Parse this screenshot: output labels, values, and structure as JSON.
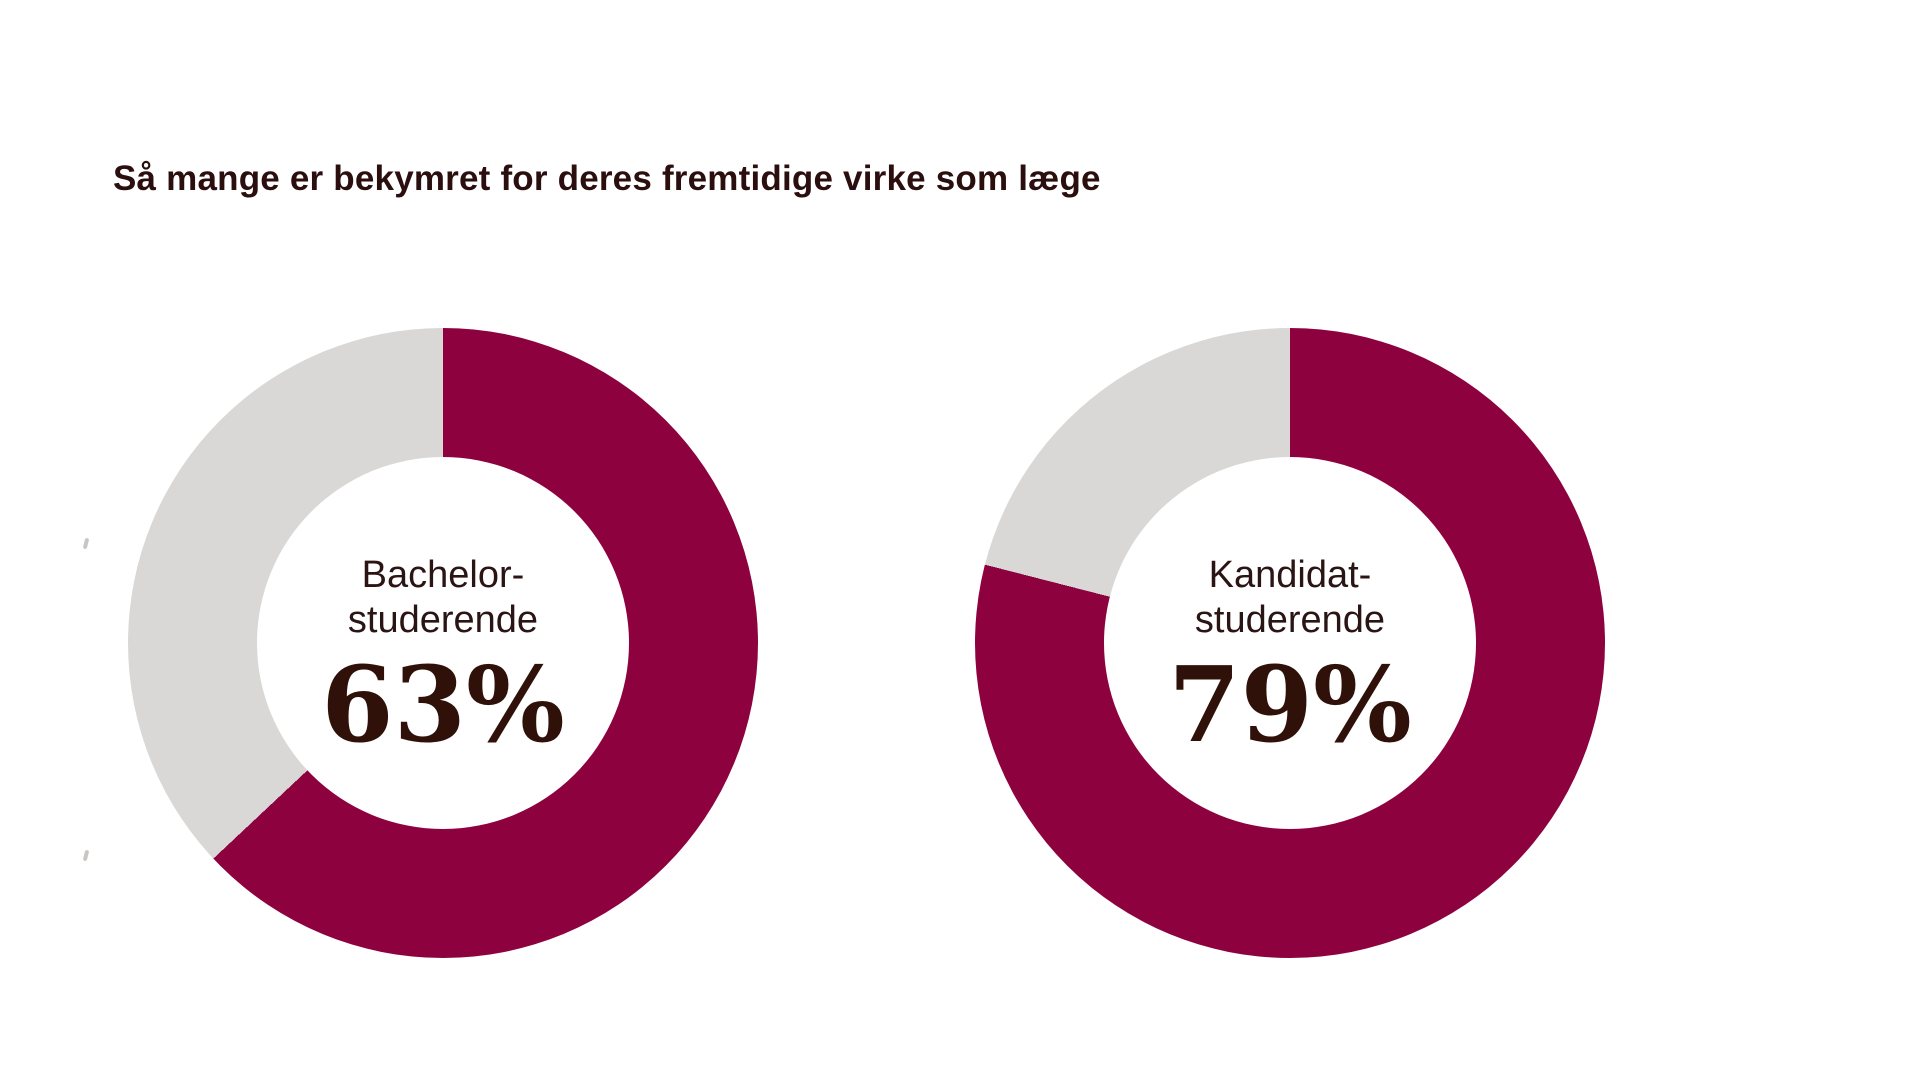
{
  "title": "Så mange er bekymret for deres fremtidige virke som læge",
  "colors": {
    "background": "#ffffff",
    "accent_filled": "#8e013f",
    "remainder_track": "#d9d8d6",
    "title_text": "#2b0e0e",
    "label_text": "#2b1414",
    "value_text": "#301109"
  },
  "chart_data": {
    "type": "pie",
    "variant": "donut",
    "title": "Så mange er bekymret for deres fremtidige virke som læge",
    "start_angle_deg": 0,
    "direction": "clockwise",
    "legend": "none",
    "grid": "off",
    "colors": {
      "filled": "#8e013f",
      "remainder": "#d9d8d6"
    },
    "series": [
      {
        "name": "Bachelorstuderende",
        "label_lines": [
          "Bachelor-",
          "studerende"
        ],
        "value_pct": 63,
        "remainder_pct": 37,
        "display_value": "63%"
      },
      {
        "name": "Kandidatstuderende",
        "label_lines": [
          "Kandidat-",
          "studerende"
        ],
        "value_pct": 79,
        "remainder_pct": 21,
        "display_value": "79%"
      }
    ]
  }
}
